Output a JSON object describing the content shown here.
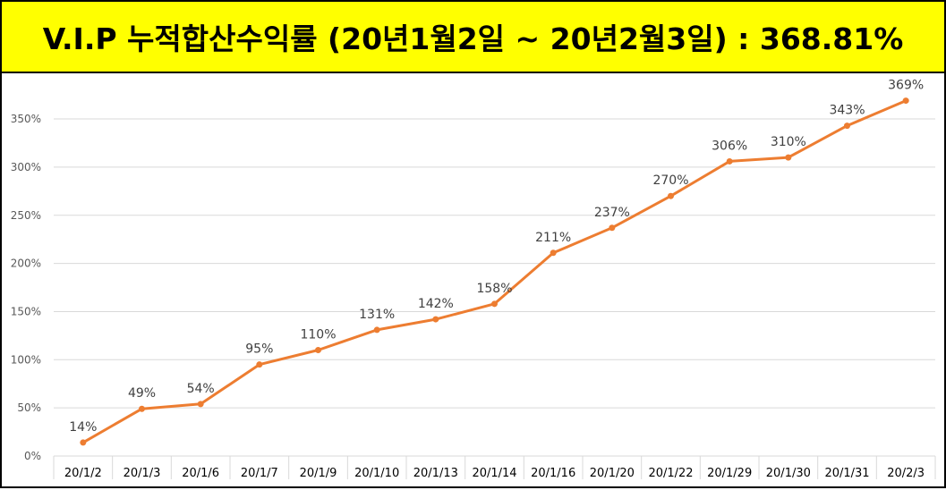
{
  "header": {
    "title": "V.I.P 누적합산수익률 (20년1월2일 ~ 20년2월3일) : 368.81%"
  },
  "colors": {
    "banner_bg": "#ffff00",
    "line": "#ed7d31",
    "grid": "#d9d9d9"
  },
  "chart_data": {
    "type": "line",
    "title": "",
    "xlabel": "",
    "ylabel": "",
    "ylim": [
      0,
      350
    ],
    "y_ticks": [
      "0%",
      "50%",
      "100%",
      "150%",
      "200%",
      "250%",
      "300%",
      "350%"
    ],
    "y_tick_values": [
      0,
      50,
      100,
      150,
      200,
      250,
      300,
      350
    ],
    "grid": true,
    "legend": "none",
    "categories": [
      "20/1/2",
      "20/1/3",
      "20/1/6",
      "20/1/7",
      "20/1/9",
      "20/1/10",
      "20/1/13",
      "20/1/14",
      "20/1/16",
      "20/1/20",
      "20/1/22",
      "20/1/29",
      "20/1/30",
      "20/1/31",
      "20/2/3"
    ],
    "series": [
      {
        "name": "누적합산수익률",
        "values": [
          14,
          49,
          54,
          95,
          110,
          131,
          142,
          158,
          211,
          237,
          270,
          306,
          310,
          343,
          369
        ],
        "labels": [
          "14%",
          "49%",
          "54%",
          "95%",
          "110%",
          "131%",
          "142%",
          "158%",
          "211%",
          "237%",
          "270%",
          "306%",
          "310%",
          "343%",
          "369%"
        ]
      }
    ]
  }
}
